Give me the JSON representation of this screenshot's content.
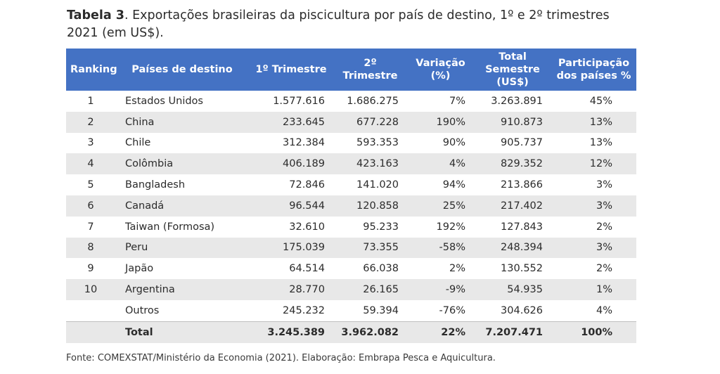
{
  "caption": {
    "label": "Tabela 3",
    "text": ". Exportações brasileiras da piscicultura por país de destino, 1º e 2º trimestres 2021 (em US$)."
  },
  "table": {
    "headers": {
      "ranking": "Ranking",
      "country": "Países de destino",
      "q1": "1º Trimestre",
      "q2": "2º Trimestre",
      "variation": "Variação (%)",
      "total": "Total Semestre (US$)",
      "share": "Participação dos países %"
    },
    "rows": [
      {
        "rank": "1",
        "country": "Estados Unidos",
        "q1": "1.577.616",
        "q2": "1.686.275",
        "variation": "7%",
        "total": "3.263.891",
        "share": "45%"
      },
      {
        "rank": "2",
        "country": "China",
        "q1": "233.645",
        "q2": "677.228",
        "variation": "190%",
        "total": "910.873",
        "share": "13%"
      },
      {
        "rank": "3",
        "country": "Chile",
        "q1": "312.384",
        "q2": "593.353",
        "variation": "90%",
        "total": "905.737",
        "share": "13%"
      },
      {
        "rank": "4",
        "country": "Colômbia",
        "q1": "406.189",
        "q2": "423.163",
        "variation": "4%",
        "total": "829.352",
        "share": "12%"
      },
      {
        "rank": "5",
        "country": "Bangladesh",
        "q1": "72.846",
        "q2": "141.020",
        "variation": "94%",
        "total": "213.866",
        "share": "3%"
      },
      {
        "rank": "6",
        "country": "Canadá",
        "q1": "96.544",
        "q2": "120.858",
        "variation": "25%",
        "total": "217.402",
        "share": "3%"
      },
      {
        "rank": "7",
        "country": "Taiwan (Formosa)",
        "q1": "32.610",
        "q2": "95.233",
        "variation": "192%",
        "total": "127.843",
        "share": "2%"
      },
      {
        "rank": "8",
        "country": "Peru",
        "q1": "175.039",
        "q2": "73.355",
        "variation": "-58%",
        "total": "248.394",
        "share": "3%"
      },
      {
        "rank": "9",
        "country": "Japão",
        "q1": "64.514",
        "q2": "66.038",
        "variation": "2%",
        "total": "130.552",
        "share": "2%"
      },
      {
        "rank": "10",
        "country": "Argentina",
        "q1": "28.770",
        "q2": "26.165",
        "variation": "-9%",
        "total": "54.935",
        "share": "1%"
      },
      {
        "rank": "",
        "country": "Outros",
        "q1": "245.232",
        "q2": "59.394",
        "variation": "-76%",
        "total": "304.626",
        "share": "4%"
      }
    ],
    "total": {
      "label": "Total",
      "q1": "3.245.389",
      "q2": "3.962.082",
      "variation": "22%",
      "total": "7.207.471",
      "share": "100%"
    }
  },
  "source": "Fonte: COMEXSTAT/Ministério da Economia (2021). Elaboração: Embrapa Pesca e Aquicultura.",
  "colors": {
    "header_bg": "#4472c4",
    "header_text": "#ffffff",
    "stripe": "#e8e8e8"
  }
}
